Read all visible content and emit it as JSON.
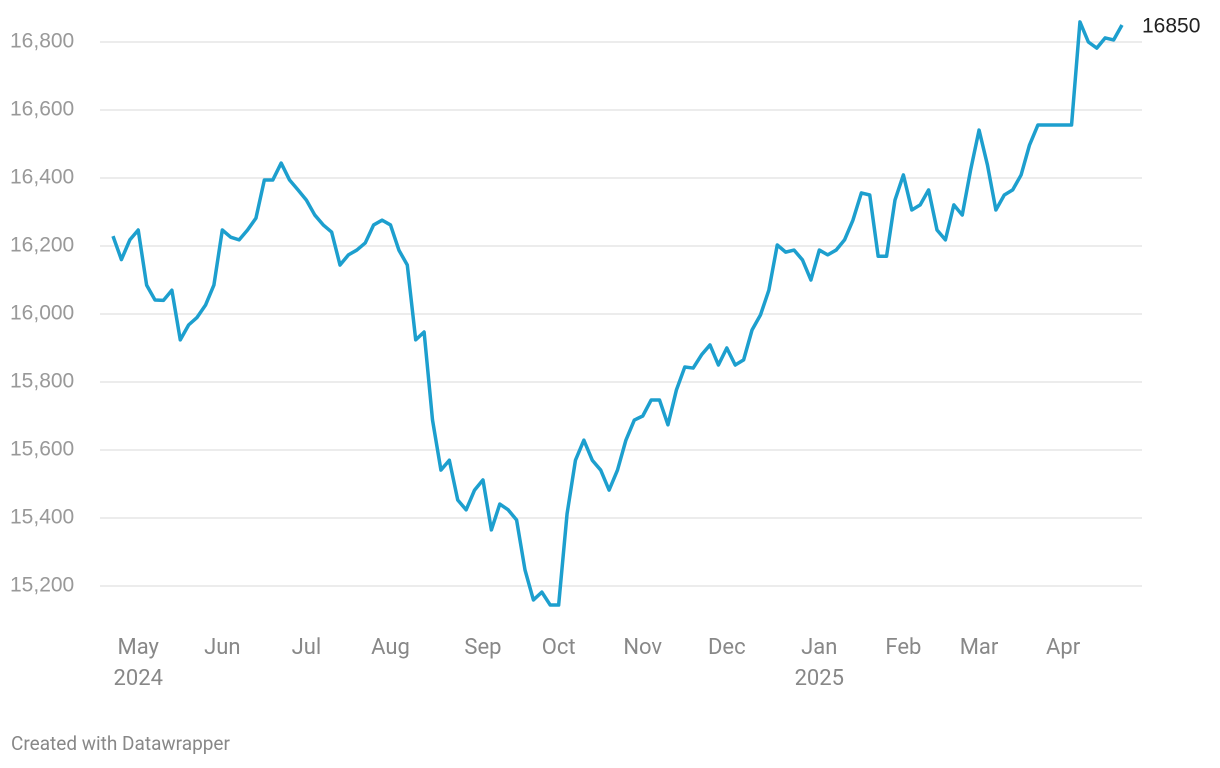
{
  "chart_data": {
    "type": "line",
    "categories": [
      null,
      null,
      null,
      "May\n2024",
      null,
      null,
      null,
      null,
      null,
      null,
      null,
      null,
      null,
      "Jun",
      null,
      null,
      null,
      null,
      null,
      null,
      null,
      null,
      null,
      "Jul",
      null,
      null,
      null,
      null,
      null,
      null,
      null,
      null,
      null,
      "Aug",
      null,
      null,
      null,
      null,
      null,
      null,
      null,
      null,
      null,
      null,
      "Sep",
      null,
      null,
      null,
      null,
      null,
      null,
      null,
      null,
      "Oct",
      null,
      null,
      null,
      null,
      null,
      null,
      null,
      null,
      null,
      "Nov",
      null,
      null,
      null,
      null,
      null,
      null,
      null,
      null,
      null,
      "Dec",
      null,
      null,
      null,
      null,
      null,
      null,
      null,
      null,
      null,
      null,
      "Jan\n2025",
      null,
      null,
      null,
      null,
      null,
      null,
      null,
      null,
      null,
      "Feb",
      null,
      null,
      null,
      null,
      null,
      null,
      null,
      null,
      "Mar",
      null,
      null,
      null,
      null,
      null,
      null,
      null,
      null,
      null,
      "Apr",
      null,
      null,
      null,
      null,
      null,
      null,
      null
    ],
    "series": [
      {
        "color": "#1d9fce",
        "values": [
          16229,
          16160,
          16218,
          16247,
          16085,
          16041,
          16040,
          16070,
          15924,
          15968,
          15990,
          16026,
          16085,
          16247,
          16226,
          16218,
          16247,
          16282,
          16394,
          16394,
          16444,
          16394,
          16365,
          16335,
          16291,
          16262,
          16241,
          16144,
          16174,
          16188,
          16209,
          16262,
          16276,
          16262,
          16188,
          16144,
          15924,
          15947,
          15688,
          15541,
          15570,
          15453,
          15424,
          15482,
          15512,
          15365,
          15441,
          15424,
          15394,
          15247,
          15159,
          15182,
          15144,
          15144,
          15412,
          15570,
          15629,
          15570,
          15541,
          15482,
          15541,
          15629,
          15688,
          15700,
          15747,
          15747,
          15674,
          15776,
          15844,
          15841,
          15880,
          15909,
          15850,
          15900,
          15850,
          15865,
          15953,
          15997,
          16070,
          16203,
          16182,
          16188,
          16159,
          16100,
          16188,
          16174,
          16188,
          16218,
          16276,
          16356,
          16350,
          16170,
          16170,
          16335,
          16409,
          16306,
          16321,
          16365,
          16247,
          16218,
          16321,
          16291,
          16424,
          16541,
          16438,
          16306,
          16350,
          16365,
          16409,
          16497,
          16556,
          16556,
          16556,
          16556,
          16556,
          16859,
          16800,
          16782,
          16812,
          16806,
          16850
        ]
      }
    ],
    "ylim": [
      15100,
      16880
    ],
    "yticks": [
      {
        "value": 15200,
        "label": "15,200"
      },
      {
        "value": 15400,
        "label": "15,400"
      },
      {
        "value": 15600,
        "label": "15,600"
      },
      {
        "value": 15800,
        "label": "15,800"
      },
      {
        "value": 16000,
        "label": "16,000"
      },
      {
        "value": 16200,
        "label": "16,200"
      },
      {
        "value": 16400,
        "label": "16,400"
      },
      {
        "value": 16600,
        "label": "16,600"
      },
      {
        "value": 16800,
        "label": "16,800"
      }
    ],
    "grid": true,
    "credit": "Created with Datawrapper"
  }
}
